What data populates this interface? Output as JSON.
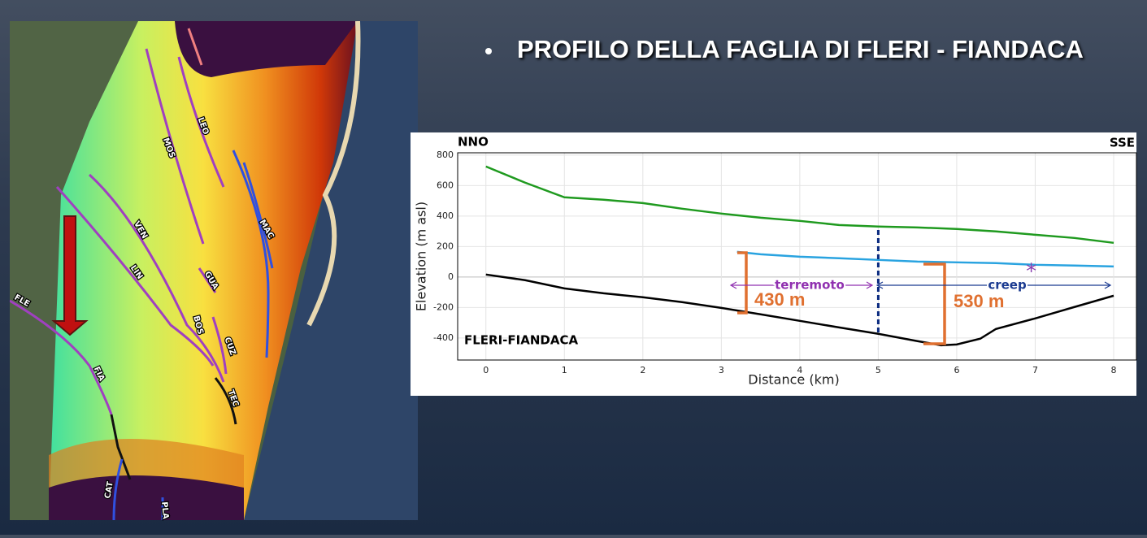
{
  "slide_title": "PROFILO DELLA FAGLIA DI FLERI - FIANDACA",
  "map": {
    "labels": [
      "LEO",
      "MOS",
      "MAC",
      "VEN",
      "LIN",
      "GUA",
      "BOS",
      "CUZ",
      "FLE",
      "FIA",
      "TEC",
      "CAT",
      "PLA"
    ]
  },
  "chart_data": {
    "type": "line",
    "x_label": "Distance (km)",
    "y_label": "Elevation (m asl)",
    "annotations": {
      "left": "NNO",
      "right": "SSE",
      "fault": "FLERI-FIANDACA",
      "quake": "terremoto",
      "creep": "creep",
      "offset1": "430 m",
      "offset2": "530 m"
    },
    "xlim": [
      -0.36,
      8.29
    ],
    "ylim": [
      -545,
      815
    ],
    "xticks": [
      0,
      1,
      2,
      3,
      4,
      5,
      6,
      7,
      8
    ],
    "yticks": [
      -400,
      -200,
      0,
      200,
      400,
      600,
      800
    ],
    "grid": true,
    "vlines": [
      5
    ],
    "markers": [
      {
        "x": 6.95,
        "y": 58,
        "color": "#8a3fb0"
      }
    ],
    "series": [
      {
        "color": "#1f9a1f",
        "x": [
          0,
          0.5,
          1,
          1.5,
          2,
          2.5,
          3,
          3.5,
          4,
          4.5,
          5,
          5.5,
          6,
          6.5,
          7,
          7.5,
          8
        ],
        "values": [
          725,
          619,
          523,
          507,
          485,
          448,
          416,
          389,
          368,
          341,
          331,
          325,
          315,
          299,
          277,
          256,
          224
        ]
      },
      {
        "color": "#29a3e0",
        "x": [
          3.2,
          3.5,
          4,
          4.5,
          5,
          5.5,
          6,
          6.5,
          7,
          7.5,
          8
        ],
        "values": [
          165,
          149,
          133,
          123,
          112,
          101,
          96,
          91,
          80,
          75,
          69
        ]
      },
      {
        "color": "#000000",
        "x": [
          0,
          0.5,
          1,
          1.5,
          2,
          2.5,
          3,
          3.5,
          4,
          4.5,
          5,
          5.5,
          5.8,
          6,
          6.3,
          6.5,
          7,
          7.5,
          8
        ],
        "values": [
          16,
          -21,
          -75,
          -107,
          -133,
          -165,
          -203,
          -245,
          -288,
          -331,
          -373,
          -421,
          -448,
          -443,
          -405,
          -341,
          -272,
          -197,
          -123
        ]
      }
    ]
  }
}
